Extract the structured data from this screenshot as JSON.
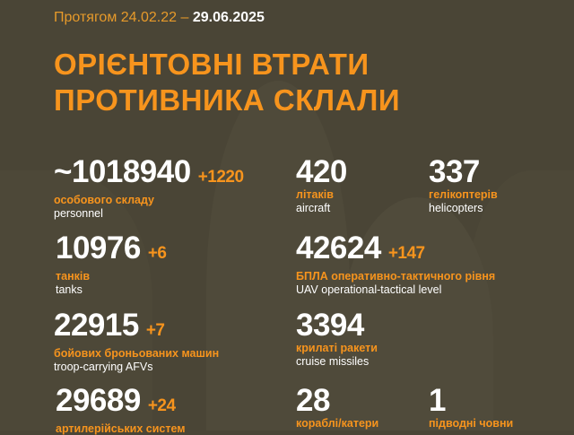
{
  "header": {
    "period_prefix": "Протягом 24.02.22 –",
    "period_date": "29.06.2025",
    "title_line1": "ОРІЄНТОВНІ ВТРАТИ",
    "title_line2": "ПРОТИВНИКА СКЛАЛИ"
  },
  "stats": [
    {
      "value": "~1018940",
      "delta": "+1220",
      "ua": "особового складу",
      "en": "personnel"
    },
    {
      "value": "420",
      "delta": "",
      "ua": "літаків",
      "en": "aircraft"
    },
    {
      "value": "337",
      "delta": "",
      "ua": "гелікоптерів",
      "en": "helicopters"
    },
    {
      "value": "10976",
      "delta": "+6",
      "ua": "танків",
      "en": "tanks"
    },
    {
      "value": "42624",
      "delta": "+147",
      "ua": "БПЛА оперативно-тактичного рівня",
      "en": "UAV operational-tactical level"
    },
    {
      "value": "22915",
      "delta": "+7",
      "ua": "бойових броньованих машин",
      "en": "troop-carrying AFVs"
    },
    {
      "value": "3394",
      "delta": "",
      "ua": "крилаті ракети",
      "en": "cruise missiles"
    },
    {
      "value": "29689",
      "delta": "+24",
      "ua": "артилерійських систем",
      "en": ""
    },
    {
      "value": "28",
      "delta": "",
      "ua": "кораблі/катери",
      "en": ""
    },
    {
      "value": "1",
      "delta": "",
      "ua": "підводні човни",
      "en": ""
    }
  ],
  "colors": {
    "background": "#4a4536",
    "accent": "#f7941d",
    "text": "#ffffff"
  }
}
